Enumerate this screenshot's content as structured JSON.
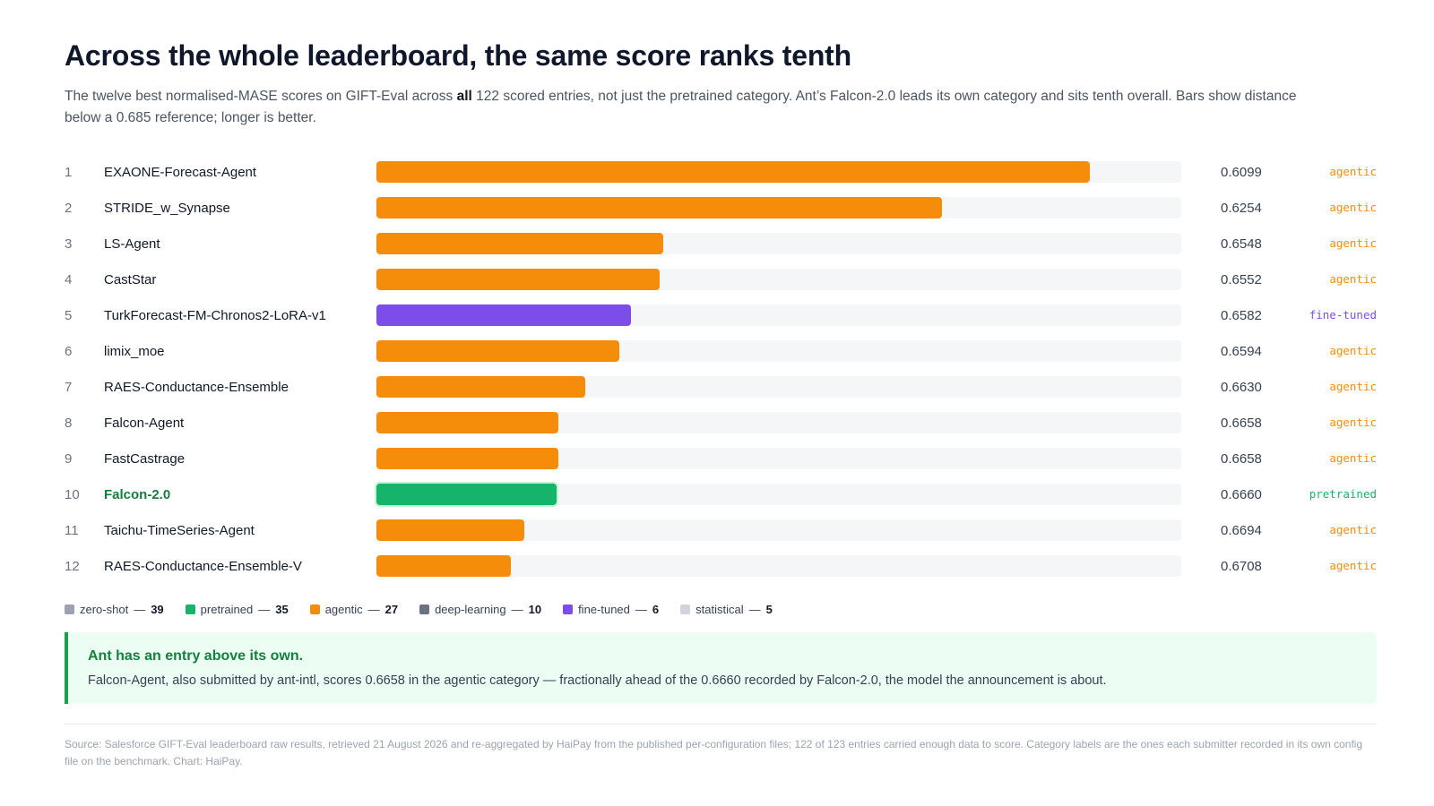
{
  "header": {
    "title": "Across the whole leaderboard, the same score ranks tenth",
    "subtitle_pre": "The twelve best normalised-MASE scores on GIFT-Eval across ",
    "subtitle_bold": "all",
    "subtitle_post": " 122 scored entries, not just the pretrained category. Ant’s Falcon-2.0 leads its own category and sits tenth overall. Bars show distance below a 0.685 reference; longer is better."
  },
  "colors": {
    "zero-shot": "#9ca3af",
    "pretrained": "#16b36a",
    "agentic": "#f68d0a",
    "deep-learning": "#6b7280",
    "fine-tuned": "#7c4de8",
    "statistical": "#d1d5db"
  },
  "chart_data": {
    "type": "bar",
    "orientation": "horizontal",
    "reference": 0.685,
    "rows": [
      {
        "rank": "1",
        "name": "EXAONE-Forecast-Agent",
        "score": "0.6099",
        "value": 0.6099,
        "category": "agentic"
      },
      {
        "rank": "2",
        "name": "STRIDE_w_Synapse",
        "score": "0.6254",
        "value": 0.6254,
        "category": "agentic"
      },
      {
        "rank": "3",
        "name": "LS-Agent",
        "score": "0.6548",
        "value": 0.6548,
        "category": "agentic"
      },
      {
        "rank": "4",
        "name": "CastStar",
        "score": "0.6552",
        "value": 0.6552,
        "category": "agentic"
      },
      {
        "rank": "5",
        "name": "TurkForecast-FM-Chronos2-LoRA-v1",
        "score": "0.6582",
        "value": 0.6582,
        "category": "fine-tuned"
      },
      {
        "rank": "6",
        "name": "limix_moe",
        "score": "0.6594",
        "value": 0.6594,
        "category": "agentic"
      },
      {
        "rank": "7",
        "name": "RAES-Conductance-Ensemble",
        "score": "0.6630",
        "value": 0.663,
        "category": "agentic"
      },
      {
        "rank": "8",
        "name": "Falcon-Agent",
        "score": "0.6658",
        "value": 0.6658,
        "category": "agentic"
      },
      {
        "rank": "9",
        "name": "FastCastrage",
        "score": "0.6658",
        "value": 0.6658,
        "category": "agentic"
      },
      {
        "rank": "10",
        "name": "Falcon-2.0",
        "score": "0.6660",
        "value": 0.666,
        "category": "pretrained",
        "highlight": true
      },
      {
        "rank": "11",
        "name": "Taichu-TimeSeries-Agent",
        "score": "0.6694",
        "value": 0.6694,
        "category": "agentic"
      },
      {
        "rank": "12",
        "name": "RAES-Conductance-Ensemble-V",
        "score": "0.6708",
        "value": 0.6708,
        "category": "agentic"
      }
    ],
    "legend": [
      {
        "label": "zero-shot",
        "count": "39"
      },
      {
        "label": "pretrained",
        "count": "35"
      },
      {
        "label": "agentic",
        "count": "27"
      },
      {
        "label": "deep-learning",
        "count": "10"
      },
      {
        "label": "fine-tuned",
        "count": "6"
      },
      {
        "label": "statistical",
        "count": "5"
      }
    ]
  },
  "callout": {
    "title": "Ant has an entry above its own.",
    "body": "Falcon-Agent, also submitted by ant-intl, scores 0.6658 in the agentic category — fractionally ahead of the 0.6660 recorded by Falcon-2.0, the model the announcement is about."
  },
  "footer": {
    "source": "Source: Salesforce GIFT-Eval leaderboard raw results, retrieved 21 August 2026 and re-aggregated by HaiPay from the published per-configuration files; 122 of 123 entries carried enough data to score. Category labels are the ones each submitter recorded in its own config file on the benchmark. Chart: HaiPay."
  }
}
